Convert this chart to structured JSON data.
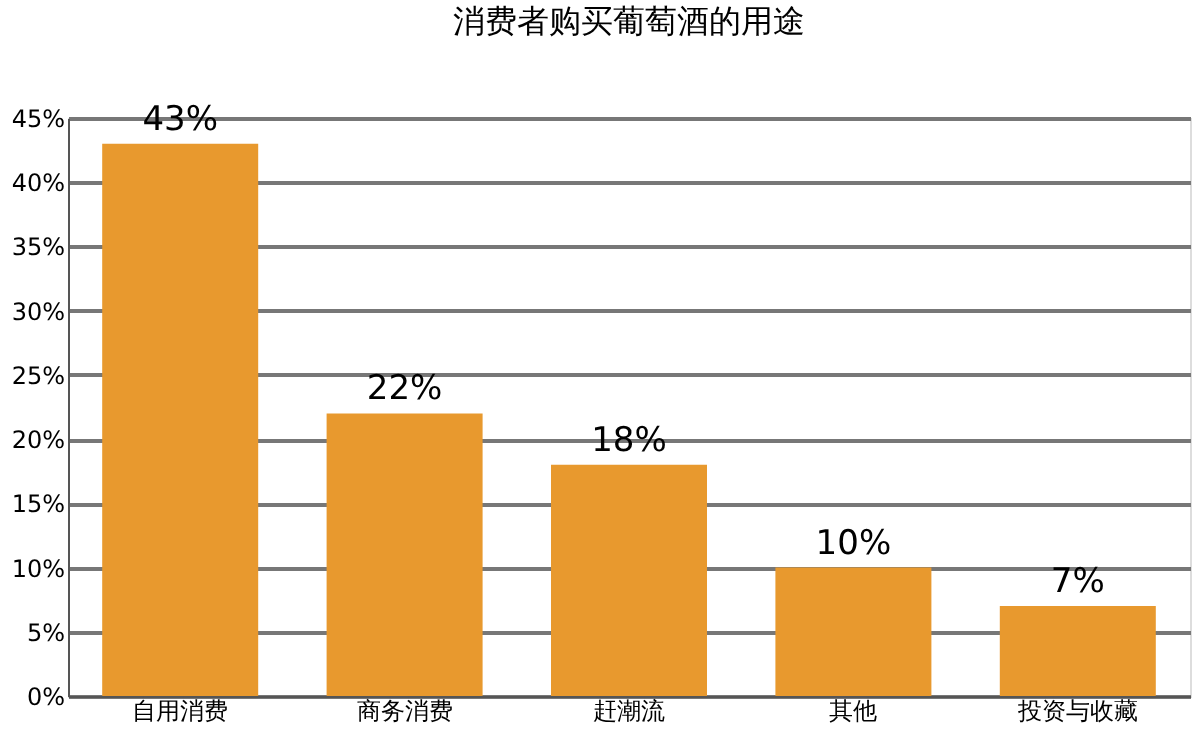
{
  "chart_data": {
    "type": "bar",
    "title": "消费者购买葡萄酒的用途",
    "categories": [
      "自用消费",
      "商务消费",
      "赶潮流",
      "其他",
      "投资与收藏"
    ],
    "values": [
      43,
      22,
      18,
      10,
      7
    ],
    "value_labels": [
      "43%",
      "22%",
      "18%",
      "10%",
      "7%"
    ],
    "color": "#e8992e",
    "ylim": [
      0,
      45
    ],
    "yticks": [
      {
        "value": 0,
        "label": "0%"
      },
      {
        "value": 5,
        "label": "5%"
      },
      {
        "value": 10,
        "label": "10%"
      },
      {
        "value": 15,
        "label": "15%"
      },
      {
        "value": 20,
        "label": "20%"
      },
      {
        "value": 25,
        "label": "25%"
      },
      {
        "value": 30,
        "label": "30%"
      },
      {
        "value": 35,
        "label": "35%"
      },
      {
        "value": 40,
        "label": "40%"
      },
      {
        "value": 45,
        "label": "45%"
      }
    ],
    "grid": "y"
  }
}
